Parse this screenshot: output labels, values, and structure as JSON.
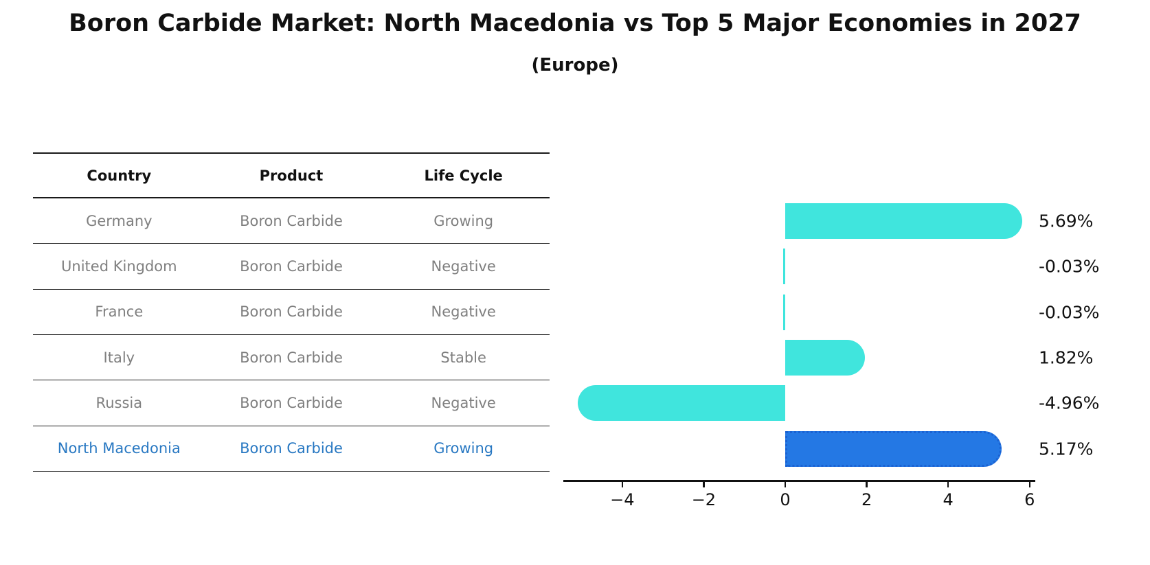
{
  "title": "Boron Carbide Market: North Macedonia vs Top 5 Major Economies in 2027",
  "subtitle": "(Europe)",
  "table": {
    "headers": [
      "Country",
      "Product",
      "Life Cycle"
    ],
    "rows": [
      {
        "country": "Germany",
        "product": "Boron Carbide",
        "life_cycle": "Growing",
        "highlighted": false
      },
      {
        "country": "United Kingdom",
        "product": "Boron Carbide",
        "life_cycle": "Negative",
        "highlighted": false
      },
      {
        "country": "France",
        "product": "Boron Carbide",
        "life_cycle": "Negative",
        "highlighted": false
      },
      {
        "country": "Italy",
        "product": "Boron Carbide",
        "life_cycle": "Stable",
        "highlighted": false
      },
      {
        "country": "Russia",
        "product": "Boron Carbide",
        "life_cycle": "Negative",
        "highlighted": false
      },
      {
        "country": "North Macedonia",
        "product": "Boron Carbide",
        "life_cycle": "Growing",
        "highlighted": true
      }
    ]
  },
  "chart_data": {
    "type": "bar",
    "orientation": "horizontal",
    "categories": [
      "Germany",
      "United Kingdom",
      "France",
      "Italy",
      "Russia",
      "North Macedonia"
    ],
    "values": [
      5.69,
      -0.03,
      -0.03,
      1.82,
      -4.96,
      5.17
    ],
    "value_labels": [
      "5.69%",
      "-0.03%",
      "-0.03%",
      "1.82%",
      "-4.96%",
      "5.17%"
    ],
    "x_ticks": [
      -4,
      -2,
      0,
      2,
      4,
      6
    ],
    "x_tick_labels": [
      "−4",
      "−2",
      "0",
      "2",
      "4",
      "6"
    ],
    "xlim": [
      -5.45,
      6.1
    ],
    "grid": false,
    "legend": false,
    "bar_color": "#40e5dd",
    "highlight_color": "#2478e4",
    "highlight_border_color": "#1b62d2",
    "highlight_index": 5
  },
  "colors": {
    "title_text": "#111111",
    "table_header_text": "#111111",
    "table_row_text": "#7f7f7f",
    "highlight_text": "#2878c2",
    "axis": "#111111"
  }
}
